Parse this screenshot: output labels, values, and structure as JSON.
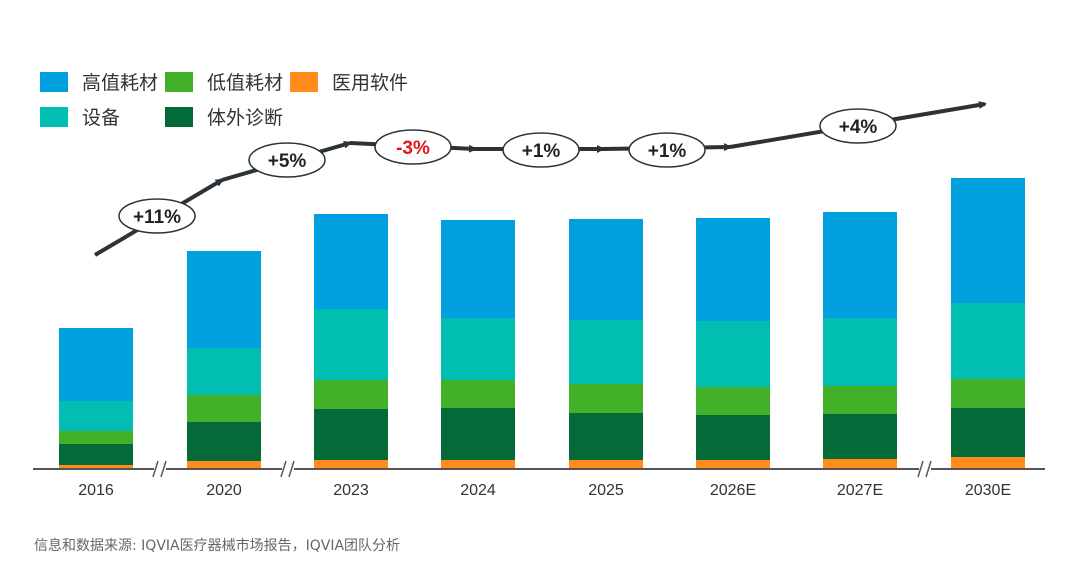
{
  "chart_data": {
    "type": "bar",
    "stacked": true,
    "title": "",
    "xlabel": "",
    "ylabel": "",
    "y_axis_shown": false,
    "grid": false,
    "legend_position": "top-left",
    "categories": [
      "2016",
      "2020",
      "2023",
      "2024",
      "2025",
      "2026E",
      "2027E",
      "2030E"
    ],
    "series": [
      {
        "name": "医用软件",
        "color": "#FF8C1A",
        "values": [
          4,
          8,
          9,
          9,
          9,
          9,
          10,
          12
        ]
      },
      {
        "name": "体外诊断",
        "color": "#046A38",
        "values": [
          21,
          39,
          51,
          52,
          47,
          45,
          45,
          49
        ]
      },
      {
        "name": "低值耗材",
        "color": "#43B02A",
        "values": [
          13,
          27,
          29,
          28,
          29,
          28,
          28,
          29
        ]
      },
      {
        "name": "设备",
        "color": "#00BFB2",
        "values": [
          30,
          47,
          71,
          62,
          64,
          66,
          68,
          76
        ]
      },
      {
        "name": "高值耗材",
        "color": "#00A0DF",
        "values": [
          73,
          97,
          95,
          98,
          101,
          103,
          106,
          125
        ]
      }
    ],
    "legend_order": [
      "高值耗材",
      "低值耗材",
      "医用软件",
      "设备",
      "体外诊断"
    ],
    "axis_breaks_after": [
      "2016",
      "2020",
      "2027E"
    ],
    "growth_annotations": [
      {
        "text": "+11%",
        "color": "#222222"
      },
      {
        "text": "+5%",
        "color": "#222222"
      },
      {
        "text": "-3%",
        "color": "#E8141B"
      },
      {
        "text": "+1%",
        "color": "#222222"
      },
      {
        "text": "+1%",
        "color": "#222222"
      },
      {
        "text": "+4%",
        "color": "#222222"
      }
    ]
  },
  "source": "信息和数据来源: IQVIA医疗器械市场报告，IQVIA团队分析"
}
